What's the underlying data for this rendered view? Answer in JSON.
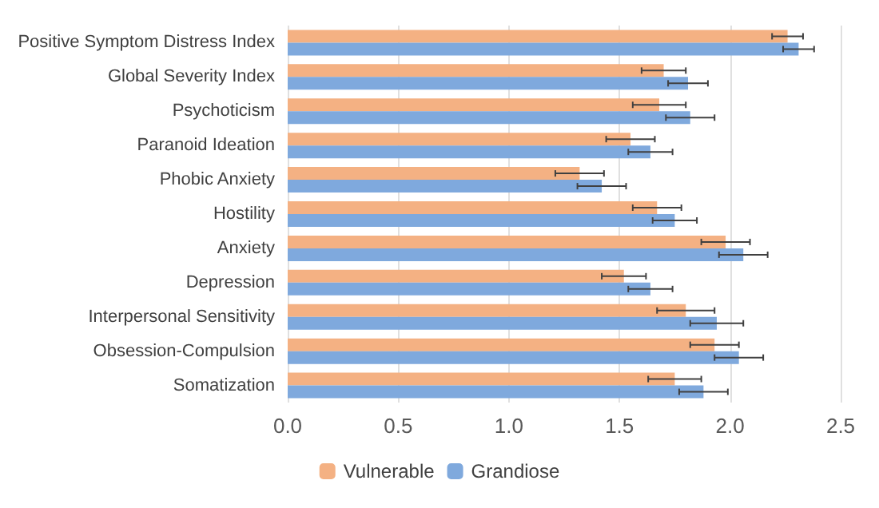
{
  "chart_data": {
    "type": "bar",
    "orientation": "horizontal",
    "categories": [
      "Positive Symptom Distress Index",
      "Global Severity Index",
      "Psychoticism",
      "Paranoid Ideation",
      "Phobic Anxiety",
      "Hostility",
      "Anxiety",
      "Depression",
      "Interpersonal Sensitivity",
      "Obsession-Compulsion",
      "Somatization"
    ],
    "series": [
      {
        "name": "Vulnerable",
        "color": "#f4b183",
        "values": [
          2.26,
          1.7,
          1.68,
          1.55,
          1.32,
          1.67,
          1.98,
          1.52,
          1.8,
          1.93,
          1.75
        ],
        "errors": [
          0.07,
          0.1,
          0.12,
          0.11,
          0.11,
          0.11,
          0.11,
          0.1,
          0.13,
          0.11,
          0.12
        ]
      },
      {
        "name": "Grandiose",
        "color": "#7fa9dd",
        "values": [
          2.31,
          1.81,
          1.82,
          1.64,
          1.42,
          1.75,
          2.06,
          1.64,
          1.94,
          2.04,
          1.88
        ],
        "errors": [
          0.07,
          0.09,
          0.11,
          0.1,
          0.11,
          0.1,
          0.11,
          0.1,
          0.12,
          0.11,
          0.11
        ]
      }
    ],
    "xlim": [
      0,
      2.5
    ],
    "xticks": [
      {
        "value": 0,
        "label": "0.0"
      },
      {
        "value": 0.5,
        "label": "0.5"
      },
      {
        "value": 1,
        "label": "1.0"
      },
      {
        "value": 1.5,
        "label": "1.5"
      },
      {
        "value": 2,
        "label": "2.0"
      },
      {
        "value": 2.5,
        "label": "2.5"
      }
    ],
    "grid": "x",
    "legend": "bottom"
  }
}
